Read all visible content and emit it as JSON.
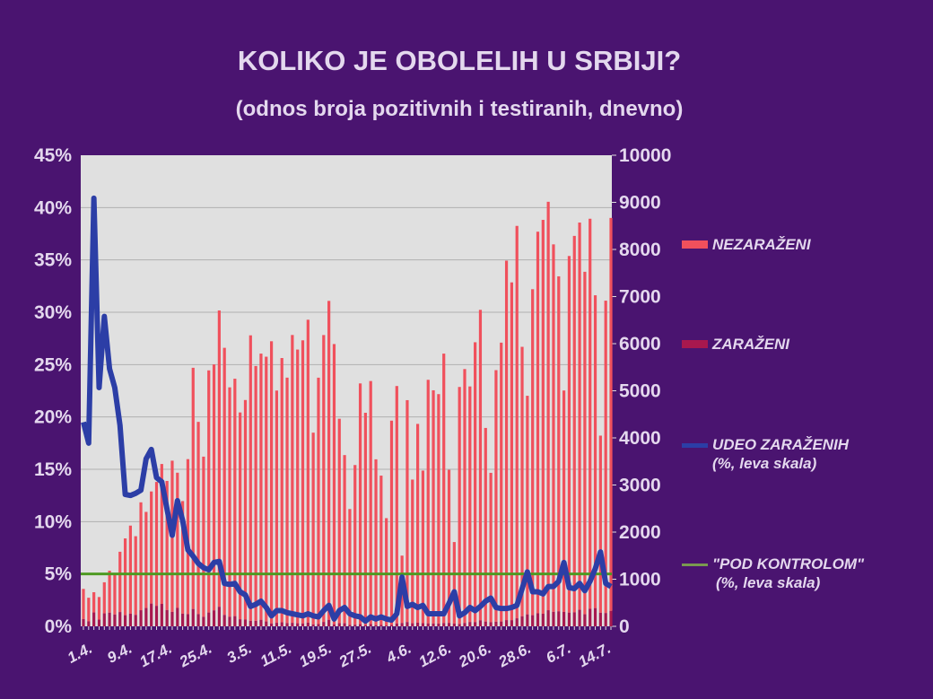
{
  "chart_data": {
    "type": "bar+line",
    "title": "KOLIKO JE OBOLELIH U SRBIJI?",
    "subtitle": "(odnos broja pozitivnih i testiranih, dnevno)",
    "left_axis": {
      "ylim": [
        0,
        45
      ],
      "ticks": [
        "0%",
        "5%",
        "10%",
        "15%",
        "20%",
        "25%",
        "30%",
        "35%",
        "40%",
        "45%"
      ]
    },
    "right_axis": {
      "ylim": [
        0,
        10000
      ],
      "ticks": [
        "0",
        "1000",
        "2000",
        "3000",
        "4000",
        "5000",
        "6000",
        "7000",
        "8000",
        "9000",
        "10000"
      ]
    },
    "x_tick_labels": [
      "1.4.",
      "9.4.",
      "17.4.",
      "25.4.",
      "3.5.",
      "11.5.",
      "19.5.",
      "27.5.",
      "4.6.",
      "12.6.",
      "20.6.",
      "28.6.",
      "6.7.",
      "14.7."
    ],
    "grid": true,
    "legend_position": "right",
    "series": [
      {
        "name": "NEZARAŽENI",
        "type": "stacked-bar",
        "axis": "right",
        "color": "#f0505c",
        "values": [
          640,
          500,
          430,
          480,
          660,
          890,
          850,
          1280,
          1630,
          1870,
          1670,
          2290,
          2040,
          2380,
          2630,
          2970,
          2740,
          3210,
          2870,
          2390,
          3290,
          5120,
          4080,
          3400,
          5140,
          5220,
          6290,
          5670,
          4870,
          5040,
          4390,
          4660,
          6060,
          5410,
          5650,
          5620,
          5990,
          4930,
          5610,
          5210,
          6110,
          5810,
          6010,
          6430,
          4070,
          5230,
          6090,
          6770,
          5950,
          4340,
          3570,
          2460,
          3390,
          5110,
          4510,
          5160,
          3520,
          3170,
          2280,
          4340,
          5040,
          1430,
          4710,
          3050,
          4220,
          3240,
          5170,
          4950,
          4870,
          5720,
          3250,
          1730,
          5030,
          5390,
          5000,
          5940,
          6590,
          4110,
          3170,
          5340,
          5920,
          7630,
          7170,
          8330,
          5720,
          4640,
          6920,
          8100,
          8360,
          8670,
          7800,
          7110,
          4700,
          7570,
          7990,
          8220,
          7270,
          8280,
          6640,
          3760,
          6630,
          8340
        ]
      },
      {
        "name": "ZARAŽENI",
        "type": "stacked-bar",
        "axis": "right",
        "color": "#a8184e",
        "values": [
          154,
          107,
          294,
          142,
          275,
          290,
          251,
          303,
          236,
          268,
          243,
          342,
          389,
          483,
          435,
          476,
          346,
          306,
          391,
          269,
          259,
          368,
          260,
          202,
          293,
          339,
          415,
          242,
          203,
          216,
          150,
          144,
          117,
          116,
          139,
          103,
          61,
          75,
          85,
          69,
          74,
          65,
          61,
          78,
          41,
          48,
          93,
          138,
          42,
          66,
          65,
          30,
          34,
          46,
          23,
          47,
          25,
          29,
          16,
          26,
          61,
          71,
          91,
          65,
          77,
          66,
          63,
          60,
          59,
          69,
          73,
          59,
          51,
          71,
          92,
          90,
          128,
          101,
          88,
          98,
          102,
          132,
          131,
          170,
          213,
          254,
          236,
          277,
          268,
          342,
          308,
          319,
          306,
          291,
          298,
          351,
          256,
          372,
          387,
          288,
          283,
          329
        ]
      },
      {
        "name": "UDEO ZARAŽENIH",
        "name_note": "(%, leva skala)",
        "type": "line",
        "axis": "left",
        "color": "#2c3ea6",
        "values": [
          19.5,
          17.5,
          40.9,
          22.8,
          29.6,
          24.6,
          22.8,
          19.2,
          12.6,
          12.5,
          12.7,
          13.0,
          16.0,
          16.9,
          14.2,
          13.8,
          11.2,
          8.7,
          12.0,
          10.1,
          7.3,
          6.7,
          6.0,
          5.6,
          5.4,
          6.1,
          6.2,
          4.1,
          4.0,
          4.1,
          3.3,
          3.0,
          1.9,
          2.1,
          2.4,
          1.8,
          1.0,
          1.5,
          1.5,
          1.3,
          1.2,
          1.1,
          1.0,
          1.2,
          1.0,
          0.9,
          1.5,
          2.0,
          0.7,
          1.5,
          1.8,
          1.2,
          1.0,
          0.9,
          0.5,
          0.9,
          0.7,
          0.9,
          0.7,
          0.6,
          1.2,
          4.7,
          1.9,
          2.1,
          1.8,
          2.0,
          1.2,
          1.2,
          1.2,
          1.2,
          2.2,
          3.3,
          1.0,
          1.3,
          1.8,
          1.5,
          1.9,
          2.4,
          2.7,
          1.8,
          1.7,
          1.7,
          1.8,
          2.0,
          3.6,
          5.2,
          3.3,
          3.3,
          3.1,
          3.8,
          3.8,
          4.3,
          6.1,
          3.7,
          3.6,
          4.1,
          3.4,
          4.3,
          5.5,
          7.1,
          4.1,
          3.8
        ]
      },
      {
        "name": "\"POD KONTROLOM\"",
        "name_note": "(%, leva skala)",
        "type": "reference-line",
        "axis": "left",
        "color": "#4e9a22",
        "value": 5
      }
    ]
  }
}
